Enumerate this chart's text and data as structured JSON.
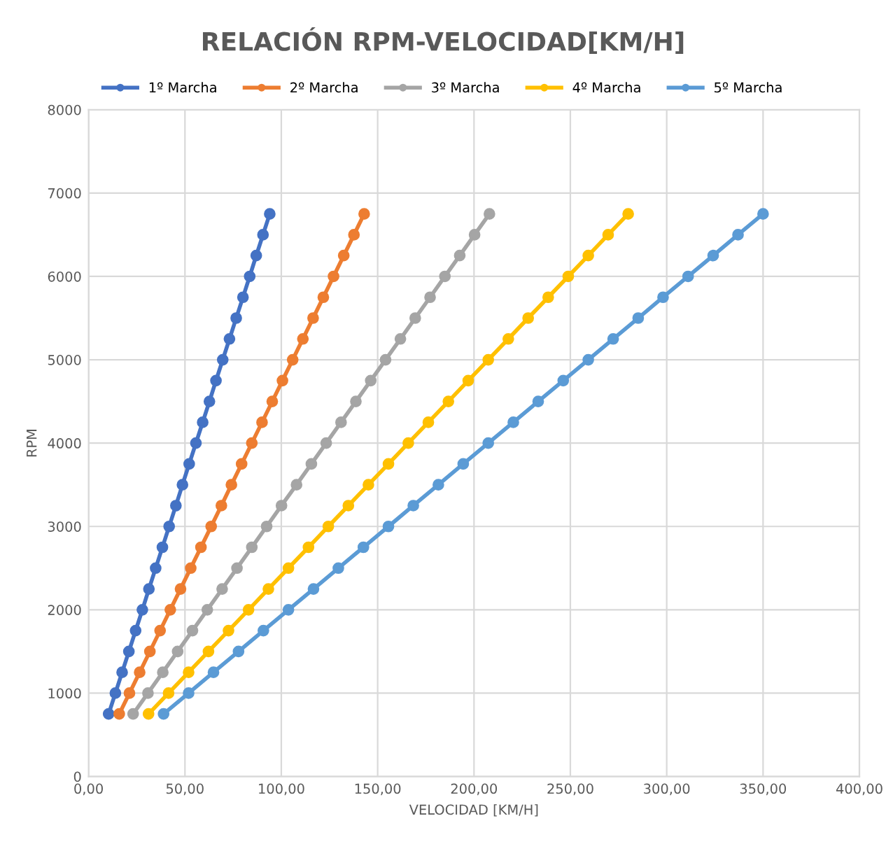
{
  "chart_data": {
    "type": "line",
    "title": "RELACIÓN RPM-VELOCIDAD[KM/H]",
    "xlabel": "VELOCIDAD [KM/H]",
    "ylabel": "RPM",
    "series": [
      {
        "name": "1º Marcha",
        "color": "#4472c4",
        "x": [
          10.4,
          13.9,
          17.4,
          20.9,
          24.4,
          27.9,
          31.3,
          34.8,
          38.3,
          41.8,
          45.3,
          48.7,
          52.2,
          55.7,
          59.2,
          62.7,
          66.1,
          69.6,
          73.1,
          76.6,
          80.1,
          83.6,
          87.0,
          90.5,
          94.0
        ],
        "values": [
          750,
          1000,
          1250,
          1500,
          1750,
          2000,
          2250,
          2500,
          2750,
          3000,
          3250,
          3500,
          3750,
          4000,
          4250,
          4500,
          4750,
          5000,
          5250,
          5500,
          5750,
          6000,
          6250,
          6500,
          6750
        ]
      },
      {
        "name": "2º Marcha",
        "color": "#ed7d31",
        "x": [
          15.9,
          21.2,
          26.5,
          31.8,
          37.1,
          42.4,
          47.7,
          53.0,
          58.3,
          63.6,
          68.9,
          74.1,
          79.4,
          84.7,
          90.0,
          95.3,
          100.6,
          105.9,
          111.2,
          116.5,
          121.8,
          127.1,
          132.4,
          137.7,
          143.0
        ],
        "values": [
          750,
          1000,
          1250,
          1500,
          1750,
          2000,
          2250,
          2500,
          2750,
          3000,
          3250,
          3500,
          3750,
          4000,
          4250,
          4500,
          4750,
          5000,
          5250,
          5500,
          5750,
          6000,
          6250,
          6500,
          6750
        ]
      },
      {
        "name": "3º Marcha",
        "color": "#a5a5a5",
        "x": [
          23.1,
          30.8,
          38.5,
          46.2,
          53.9,
          61.6,
          69.3,
          77.0,
          84.7,
          92.4,
          100.1,
          107.9,
          115.6,
          123.3,
          131.0,
          138.7,
          146.4,
          154.1,
          161.8,
          169.5,
          177.2,
          184.9,
          192.6,
          200.3,
          208.0
        ],
        "values": [
          750,
          1000,
          1250,
          1500,
          1750,
          2000,
          2250,
          2500,
          2750,
          3000,
          3250,
          3500,
          3750,
          4000,
          4250,
          4500,
          4750,
          5000,
          5250,
          5500,
          5750,
          6000,
          6250,
          6500,
          6750
        ]
      },
      {
        "name": "4º Marcha",
        "color": "#ffc000",
        "x": [
          31.1,
          41.5,
          51.9,
          62.2,
          72.6,
          83.0,
          93.3,
          103.7,
          114.1,
          124.4,
          134.8,
          145.2,
          155.6,
          165.9,
          176.3,
          186.7,
          197.0,
          207.4,
          217.8,
          228.1,
          238.5,
          248.9,
          259.3,
          269.6,
          280.0
        ],
        "values": [
          750,
          1000,
          1250,
          1500,
          1750,
          2000,
          2250,
          2500,
          2750,
          3000,
          3250,
          3500,
          3750,
          4000,
          4250,
          4500,
          4750,
          5000,
          5250,
          5500,
          5750,
          6000,
          6250,
          6500,
          6750
        ]
      },
      {
        "name": "5º Marcha",
        "color": "#5b9bd5",
        "x": [
          38.9,
          51.9,
          64.8,
          77.8,
          90.7,
          103.7,
          116.7,
          129.6,
          142.6,
          155.6,
          168.5,
          181.5,
          194.4,
          207.4,
          220.4,
          233.3,
          246.3,
          259.3,
          272.2,
          285.2,
          298.1,
          311.1,
          324.1,
          337.0,
          350.0
        ],
        "values": [
          750,
          1000,
          1250,
          1500,
          1750,
          2000,
          2250,
          2500,
          2750,
          3000,
          3250,
          3500,
          3750,
          4000,
          4250,
          4500,
          4750,
          5000,
          5250,
          5500,
          5750,
          6000,
          6250,
          6500,
          6750
        ]
      }
    ],
    "xlim": [
      0,
      400
    ],
    "xticks": [
      {
        "value": 0,
        "label": "0,00"
      },
      {
        "value": 50,
        "label": "50,00"
      },
      {
        "value": 100,
        "label": "100,00"
      },
      {
        "value": 150,
        "label": "150,00"
      },
      {
        "value": 200,
        "label": "200,00"
      },
      {
        "value": 250,
        "label": "250,00"
      },
      {
        "value": 300,
        "label": "300,00"
      },
      {
        "value": 350,
        "label": "350,00"
      },
      {
        "value": 400,
        "label": "400,00"
      }
    ],
    "ylim": [
      0,
      8000
    ],
    "yticks": [
      0,
      1000,
      2000,
      3000,
      4000,
      5000,
      6000,
      7000,
      8000
    ],
    "grid": true,
    "legend": "top",
    "marker": "circle",
    "line_style": "solid"
  }
}
